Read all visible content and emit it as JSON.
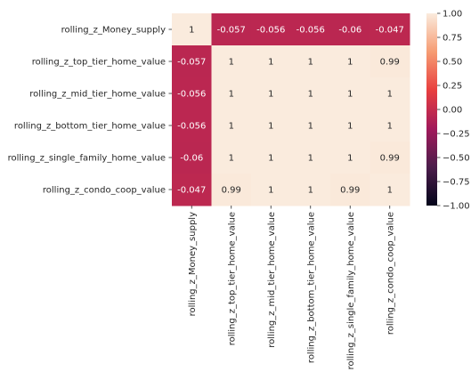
{
  "chart_data": {
    "type": "heatmap",
    "row_labels": [
      "rolling_z_Money_supply",
      "rolling_z_top_tier_home_value",
      "rolling_z_mid_tier_home_value",
      "rolling_z_bottom_tier_home_value",
      "rolling_z_single_family_home_value",
      "rolling_z_condo_coop_value"
    ],
    "col_labels": [
      "rolling_z_Money_supply",
      "rolling_z_top_tier_home_value",
      "rolling_z_mid_tier_home_value",
      "rolling_z_bottom_tier_home_value",
      "rolling_z_single_family_home_value",
      "rolling_z_condo_coop_value"
    ],
    "values": [
      [
        1,
        -0.057,
        -0.056,
        -0.056,
        -0.06,
        -0.047
      ],
      [
        -0.057,
        1,
        1,
        1,
        1,
        0.99
      ],
      [
        -0.056,
        1,
        1,
        1,
        1,
        1
      ],
      [
        -0.056,
        1,
        1,
        1,
        1,
        1
      ],
      [
        -0.06,
        1,
        1,
        1,
        1,
        0.99
      ],
      [
        -0.047,
        0.99,
        1,
        1,
        0.99,
        1
      ]
    ],
    "annotations": [
      [
        "1",
        "-0.057",
        "-0.056",
        "-0.056",
        "-0.06",
        "-0.047"
      ],
      [
        "-0.057",
        "1",
        "1",
        "1",
        "1",
        "0.99"
      ],
      [
        "-0.056",
        "1",
        "1",
        "1",
        "1",
        "1"
      ],
      [
        "-0.056",
        "1",
        "1",
        "1",
        "1",
        "1"
      ],
      [
        "-0.06",
        "1",
        "1",
        "1",
        "1",
        "0.99"
      ],
      [
        "-0.047",
        "0.99",
        "1",
        "1",
        "0.99",
        "1"
      ]
    ],
    "colorbar": {
      "vmin": -1.0,
      "vmax": 1.0,
      "ticks": [
        1.0,
        0.75,
        0.5,
        0.25,
        0.0,
        -0.25,
        -0.5,
        -0.75,
        -1.0
      ],
      "tick_labels": [
        "1.00",
        "0.75",
        "0.50",
        "0.25",
        "0.00",
        "−0.25",
        "−0.50",
        "−0.75",
        "−1.00"
      ],
      "colormap": "rocket",
      "colormap_stops": [
        "#03051a",
        "#4c1d4b",
        "#a11a5b",
        "#e83f3f",
        "#f69c73",
        "#faebdd"
      ]
    },
    "title": "",
    "xlabel": "",
    "ylabel": ""
  }
}
